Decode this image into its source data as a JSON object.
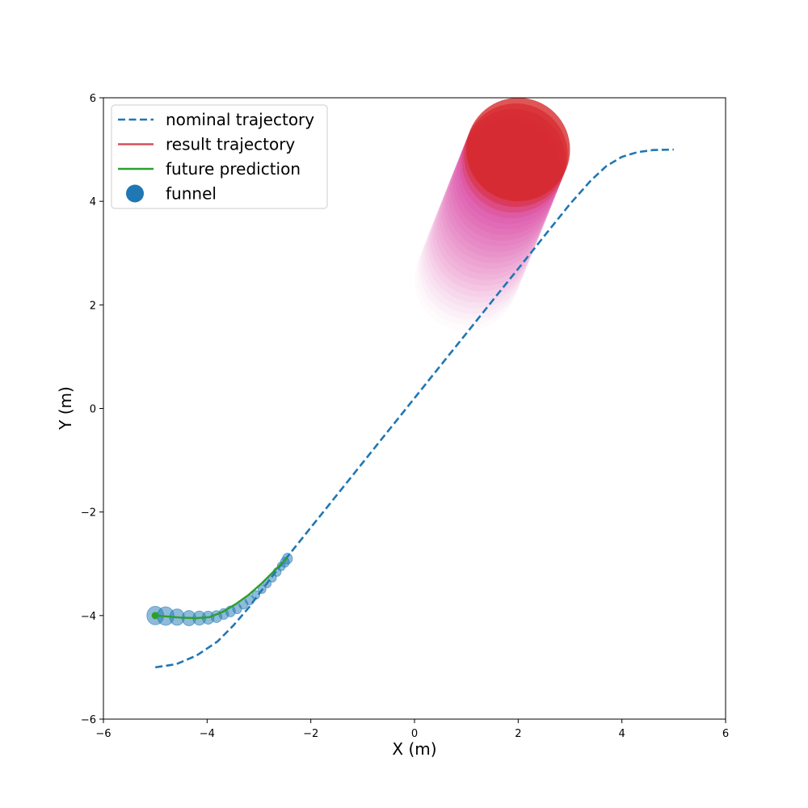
{
  "chart_data": {
    "type": "line",
    "xlabel": "X (m)",
    "ylabel": "Y (m)",
    "xlim": [
      -6,
      6
    ],
    "ylim": [
      -6,
      6
    ],
    "xticks": [
      -6,
      -4,
      -2,
      0,
      2,
      4,
      6
    ],
    "yticks": [
      -6,
      -4,
      -2,
      0,
      2,
      4,
      6
    ],
    "xtick_labels": [
      "−6",
      "−4",
      "−2",
      "0",
      "2",
      "4",
      "6"
    ],
    "ytick_labels": [
      "−6",
      "−4",
      "−2",
      "0",
      "2",
      "4",
      "6"
    ],
    "grid": false,
    "legend_position": "top-left",
    "legend": [
      {
        "label": "nominal trajectory",
        "style": "dashed-line",
        "color": "#1f77b4"
      },
      {
        "label": "result trajectory",
        "style": "line",
        "color": "#d6515c"
      },
      {
        "label": "future prediction",
        "style": "line",
        "color": "#2ca02c"
      },
      {
        "label": "funnel",
        "style": "marker",
        "color": "#1f77b4"
      }
    ],
    "series": [
      {
        "name": "nominal trajectory",
        "color": "#1f77b4",
        "x": [
          -5,
          -4.6,
          -4.2,
          -3.8,
          -3.5,
          -3.2,
          -2.9,
          -2.6,
          -2.2,
          -1.8,
          -1.4,
          -1.0,
          -0.6,
          -0.2,
          0.2,
          0.6,
          1.0,
          1.4,
          1.8,
          2.2,
          2.6,
          3.0,
          3.4,
          3.7,
          4.0,
          4.3,
          4.6,
          5.0
        ],
        "y": [
          -5.0,
          -4.94,
          -4.77,
          -4.5,
          -4.2,
          -3.85,
          -3.45,
          -3.05,
          -2.55,
          -2.05,
          -1.55,
          -1.05,
          -0.55,
          -0.05,
          0.45,
          0.95,
          1.45,
          1.95,
          2.45,
          2.95,
          3.45,
          3.95,
          4.4,
          4.68,
          4.86,
          4.95,
          4.99,
          5.0
        ]
      },
      {
        "name": "future prediction",
        "color": "#2ca02c",
        "x": [
          -5.0,
          -4.75,
          -4.5,
          -4.2,
          -3.95,
          -3.7,
          -3.45,
          -3.2,
          -2.95,
          -2.7,
          -2.45
        ],
        "y": [
          -4.0,
          -4.02,
          -4.04,
          -4.05,
          -4.03,
          -3.93,
          -3.78,
          -3.6,
          -3.38,
          -3.13,
          -2.88
        ]
      }
    ],
    "funnel": {
      "color": "#1f77b4",
      "x": [
        -5.0,
        -4.8,
        -4.58,
        -4.35,
        -4.15,
        -3.98,
        -3.82,
        -3.68,
        -3.55,
        -3.42,
        -3.3,
        -3.18,
        -3.06,
        -2.94,
        -2.84,
        -2.74,
        -2.65,
        -2.57,
        -2.5,
        -2.45
      ],
      "y": [
        -4.0,
        -4.01,
        -4.03,
        -4.05,
        -4.05,
        -4.04,
        -4.02,
        -3.97,
        -3.92,
        -3.87,
        -3.78,
        -3.7,
        -3.6,
        -3.49,
        -3.38,
        -3.27,
        -3.16,
        -3.05,
        -2.97,
        -2.9
      ],
      "radius": [
        0.17,
        0.17,
        0.15,
        0.14,
        0.13,
        0.12,
        0.11,
        0.1,
        0.1,
        0.09,
        0.09,
        0.09,
        0.08,
        0.08,
        0.08,
        0.08,
        0.08,
        0.08,
        0.09,
        0.1
      ]
    },
    "obstacle": {
      "color_start": "#f6d8ef",
      "color_end": "#d62728",
      "final_center": [
        2.0,
        5.0
      ],
      "start_center": [
        1.0,
        2.5
      ],
      "radius": 1.0
    },
    "start_point": {
      "x": -5.0,
      "y": -4.0,
      "color": "#2ca02c"
    }
  }
}
